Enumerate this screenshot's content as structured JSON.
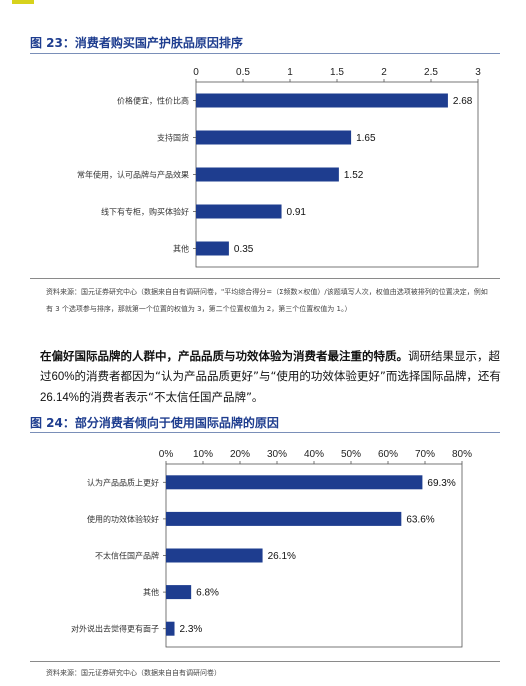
{
  "figure1": {
    "title": "图 23：消费者购买国产护肤品原因排序",
    "note": "资料来源：国元证券研究中心（数据来自自有调研问卷，\"平均综合得分=（Σ频数×权值）/该题填写人次，权值由选项被排列的位置决定，例如有 3 个选项参与排序，那就第一个位置的权值为 3，第二个位置权值为 2，第三个位置权值为 1。）",
    "chart_data": {
      "type": "bar",
      "orientation": "horizontal",
      "categories": [
        "价格便宜，性价比高",
        "支持国货",
        "常年使用，认可品牌与产品效果",
        "线下有专柜，购买体验好",
        "其他"
      ],
      "values": [
        2.68,
        1.65,
        1.52,
        0.91,
        0.35
      ],
      "value_labels": [
        "2.68",
        "1.65",
        "1.52",
        "0.91",
        "0.35"
      ],
      "xlim": [
        0,
        3
      ],
      "ticks": [
        "0",
        "0.5",
        "1",
        "1.5",
        "2",
        "2.5",
        "3"
      ],
      "tick_values": [
        0,
        0.5,
        1,
        1.5,
        2,
        2.5,
        3
      ],
      "axis_position": "top",
      "grid": false,
      "bar_color": "#1e3d8f"
    }
  },
  "paragraph": {
    "bold": "在偏好国际品牌的人群中，产品品质与功效体验为消费者最注重的特质。",
    "t1": "调研结果显示，超过",
    "n1": "60%",
    "t2": "的消费者都因为“认为产品品质更好”与“使用的功效体验更好”而选择国际品牌，还有",
    "n2": "26.14%",
    "t3": "的消费者表示“不太信任国产品牌”。"
  },
  "figure2": {
    "title": "图 24：部分消费者倾向于使用国际品牌的原因",
    "source": "资料来源：国元证券研究中心（数据来自自有调研问卷）",
    "chart_data": {
      "type": "bar",
      "orientation": "horizontal",
      "categories": [
        "认为产品品质上更好",
        "使用的功效体验较好",
        "不太信任国产品牌",
        "其他",
        "对外说出去觉得更有面子"
      ],
      "values": [
        69.3,
        63.6,
        26.1,
        6.8,
        2.3
      ],
      "value_labels": [
        "69.3%",
        "63.6%",
        "26.1%",
        "6.8%",
        "2.3%"
      ],
      "xlim": [
        0,
        80
      ],
      "ticks": [
        "0%",
        "10%",
        "20%",
        "30%",
        "40%",
        "50%",
        "60%",
        "70%",
        "80%"
      ],
      "tick_values": [
        0,
        10,
        20,
        30,
        40,
        50,
        60,
        70,
        80
      ],
      "axis_position": "top",
      "grid": false,
      "bar_color": "#1e3d8f"
    }
  }
}
